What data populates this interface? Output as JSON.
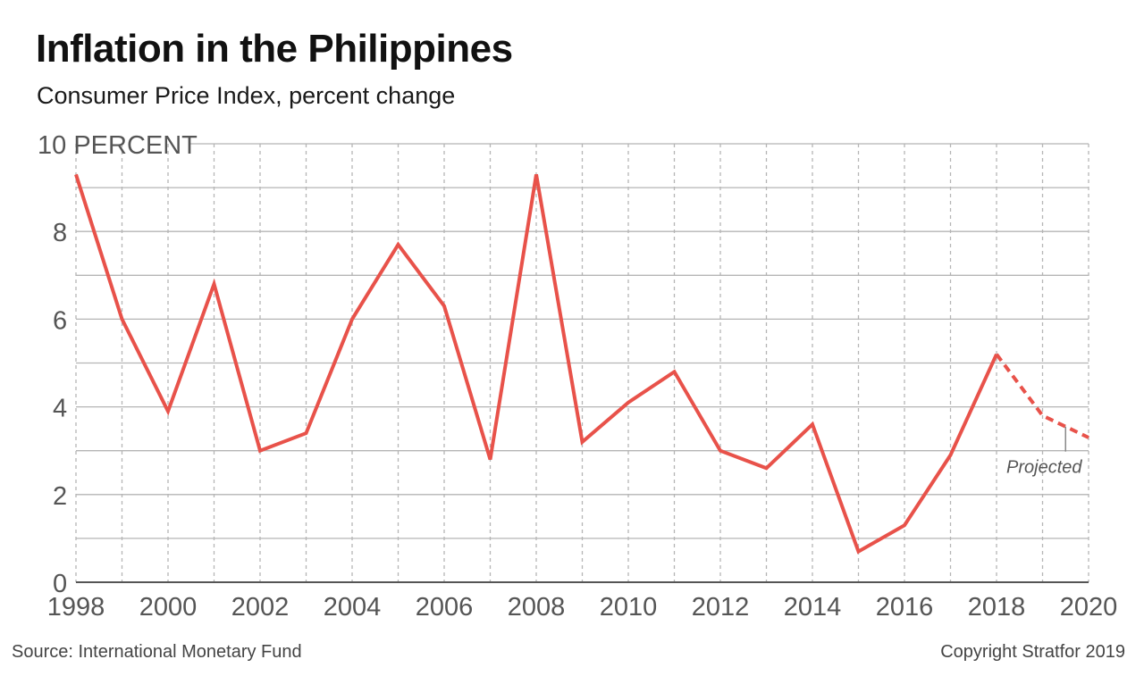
{
  "title": "Inflation in the Philippines",
  "subtitle": "Consumer Price Index, percent change",
  "source": "Source: International Monetary Fund",
  "copyright": "Copyright Stratfor 2019",
  "chart_data": {
    "type": "line",
    "title": "Inflation in the Philippines",
    "subtitle": "Consumer Price Index, percent change",
    "ylabel": "",
    "xlabel": "",
    "y_unit_label": "PERCENT",
    "ylim": [
      0,
      10
    ],
    "xlim": [
      1998,
      2020
    ],
    "y_ticks": [
      0,
      2,
      4,
      6,
      8,
      10
    ],
    "y_tick_labels": [
      "0",
      "2",
      "4",
      "6",
      "8",
      "10"
    ],
    "x_ticks": [
      1998,
      2000,
      2002,
      2004,
      2006,
      2008,
      2010,
      2012,
      2014,
      2016,
      2018,
      2020
    ],
    "x_tick_labels": [
      "1998",
      "2000",
      "2002",
      "2004",
      "2006",
      "2008",
      "2010",
      "2012",
      "2014",
      "2016",
      "2018",
      "2020"
    ],
    "grid": true,
    "series": [
      {
        "style": "solid",
        "color": "#e8524a",
        "x": [
          1998,
          1999,
          2000,
          2001,
          2002,
          2003,
          2004,
          2005,
          2006,
          2007,
          2008,
          2009,
          2010,
          2011,
          2012,
          2013,
          2014,
          2015,
          2016,
          2017,
          2018
        ],
        "values": [
          9.3,
          6.0,
          3.9,
          6.8,
          3.0,
          3.4,
          6.0,
          7.7,
          6.3,
          2.8,
          9.3,
          3.2,
          4.1,
          4.8,
          3.0,
          2.6,
          3.6,
          0.7,
          1.3,
          2.9,
          5.2
        ]
      },
      {
        "style": "dashed",
        "color": "#e8524a",
        "x": [
          2018,
          2019,
          2020
        ],
        "values": [
          5.2,
          3.8,
          3.3
        ]
      }
    ],
    "annotations": [
      {
        "text": "Projected",
        "x": 2019.5,
        "y": 3.55
      }
    ]
  }
}
